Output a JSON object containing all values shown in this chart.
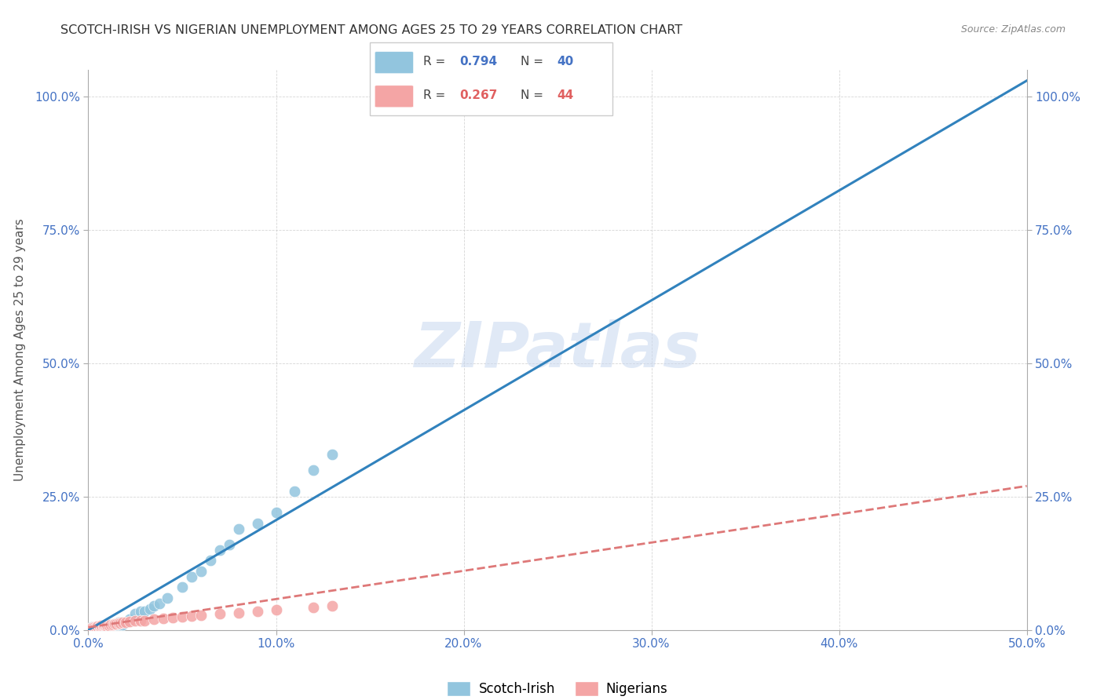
{
  "title": "SCOTCH-IRISH VS NIGERIAN UNEMPLOYMENT AMONG AGES 25 TO 29 YEARS CORRELATION CHART",
  "source": "Source: ZipAtlas.com",
  "ylabel": "Unemployment Among Ages 25 to 29 years",
  "xmin": 0.0,
  "xmax": 0.5,
  "ymin": 0.0,
  "ymax": 1.05,
  "x_ticks": [
    0.0,
    0.1,
    0.2,
    0.3,
    0.4,
    0.5
  ],
  "x_tick_labels": [
    "0.0%",
    "10.0%",
    "20.0%",
    "30.0%",
    "40.0%",
    "50.0%"
  ],
  "y_ticks": [
    0.0,
    0.25,
    0.5,
    0.75,
    1.0
  ],
  "y_tick_labels": [
    "0.0%",
    "25.0%",
    "50.0%",
    "75.0%",
    "100.0%"
  ],
  "legend_r1_label": "R = ",
  "legend_r1_val": "0.794",
  "legend_n1_label": "N = ",
  "legend_n1_val": "40",
  "legend_r2_label": "R = ",
  "legend_r2_val": "0.267",
  "legend_n2_label": "N = ",
  "legend_n2_val": "44",
  "scotch_irish_color": "#92c5de",
  "nigerian_color": "#f4a5a5",
  "scotch_irish_line_color": "#3182bd",
  "nigerian_line_color": "#de7878",
  "tick_color": "#4472c4",
  "watermark_color": "#c8d8f0",
  "scotch_irish_x": [
    0.002,
    0.003,
    0.004,
    0.005,
    0.006,
    0.007,
    0.007,
    0.008,
    0.009,
    0.01,
    0.01,
    0.011,
    0.012,
    0.013,
    0.014,
    0.015,
    0.016,
    0.017,
    0.018,
    0.02,
    0.022,
    0.025,
    0.028,
    0.03,
    0.033,
    0.035,
    0.038,
    0.042,
    0.05,
    0.055,
    0.06,
    0.065,
    0.07,
    0.075,
    0.08,
    0.09,
    0.1,
    0.11,
    0.12,
    0.13
  ],
  "scotch_irish_y": [
    0.005,
    0.005,
    0.005,
    0.005,
    0.005,
    0.005,
    0.008,
    0.005,
    0.005,
    0.005,
    0.01,
    0.01,
    0.01,
    0.01,
    0.01,
    0.01,
    0.015,
    0.01,
    0.01,
    0.015,
    0.02,
    0.03,
    0.035,
    0.035,
    0.04,
    0.045,
    0.05,
    0.06,
    0.08,
    0.1,
    0.11,
    0.13,
    0.15,
    0.16,
    0.19,
    0.2,
    0.22,
    0.26,
    0.3,
    0.33
  ],
  "nigerian_x": [
    0.001,
    0.002,
    0.002,
    0.003,
    0.003,
    0.004,
    0.004,
    0.005,
    0.005,
    0.006,
    0.006,
    0.007,
    0.007,
    0.008,
    0.008,
    0.009,
    0.009,
    0.01,
    0.01,
    0.011,
    0.012,
    0.013,
    0.014,
    0.015,
    0.016,
    0.017,
    0.018,
    0.02,
    0.022,
    0.025,
    0.028,
    0.03,
    0.035,
    0.04,
    0.045,
    0.05,
    0.055,
    0.06,
    0.07,
    0.08,
    0.09,
    0.1,
    0.12,
    0.13
  ],
  "nigerian_y": [
    0.002,
    0.003,
    0.004,
    0.003,
    0.005,
    0.004,
    0.006,
    0.005,
    0.007,
    0.005,
    0.007,
    0.006,
    0.008,
    0.006,
    0.008,
    0.007,
    0.009,
    0.007,
    0.01,
    0.008,
    0.01,
    0.01,
    0.012,
    0.012,
    0.013,
    0.013,
    0.014,
    0.015,
    0.016,
    0.017,
    0.018,
    0.018,
    0.02,
    0.022,
    0.023,
    0.025,
    0.026,
    0.028,
    0.03,
    0.032,
    0.035,
    0.038,
    0.042,
    0.045
  ],
  "si_line_x0": 0.0,
  "si_line_x1": 0.5,
  "si_line_y0": 0.0,
  "si_line_y1": 1.03,
  "ng_line_x0": 0.0,
  "ng_line_x1": 0.5,
  "ng_line_y0": 0.005,
  "ng_line_y1": 0.27
}
